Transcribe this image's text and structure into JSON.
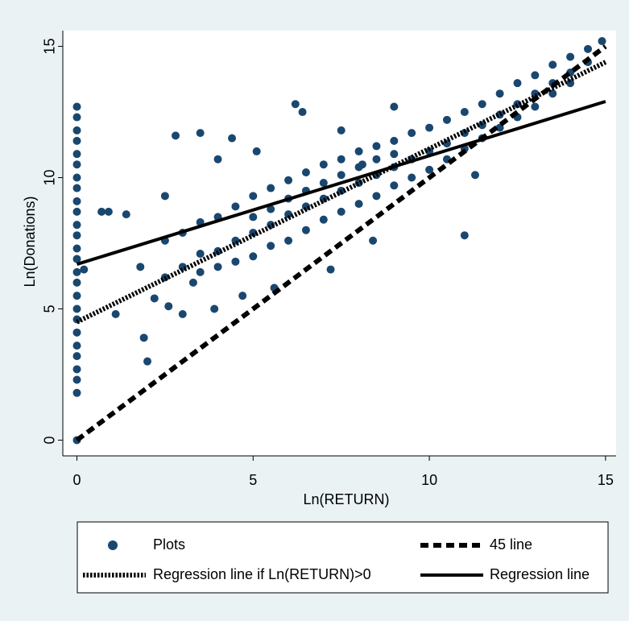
{
  "chart_data": {
    "type": "scatter",
    "x_label": "Ln(RETURN)",
    "y_label": "Ln(Donations)",
    "xlim": [
      -0.4,
      15.3
    ],
    "ylim": [
      -0.6,
      15.6
    ],
    "xticks": [
      0,
      5,
      10,
      15
    ],
    "yticks": [
      0,
      5,
      10,
      15
    ],
    "series": [
      {
        "name": "Plots",
        "type": "scatter",
        "color": "#1a476f",
        "x": [
          0,
          0,
          0,
          0,
          0,
          0,
          0,
          0,
          0,
          0,
          0,
          0,
          0,
          0,
          0,
          0,
          0,
          0,
          0,
          0,
          0,
          0,
          0,
          0,
          0,
          0,
          0.7,
          0.9,
          1.4,
          1.1,
          0.2,
          1.8,
          1.9,
          2.0,
          2.8,
          3.5,
          4.0,
          2.5,
          2.2,
          2.6,
          3.0,
          3.3,
          4.4,
          5.1,
          6.2,
          6.4,
          7.5,
          8.1,
          9.0,
          11.0,
          11.3,
          7.2,
          8.4,
          5.6,
          3.9,
          4.7,
          2.5,
          2.5,
          3,
          3,
          3.5,
          3.5,
          3.5,
          4,
          4,
          4,
          4.5,
          4.5,
          4.5,
          5,
          5,
          5,
          5,
          5.5,
          5.5,
          5.5,
          5.5,
          6,
          6,
          6,
          6,
          6.5,
          6.5,
          6.5,
          6.5,
          7,
          7,
          7,
          7,
          7.5,
          7.5,
          7.5,
          7.5,
          8,
          8,
          8,
          8,
          8.5,
          8.5,
          8.5,
          8.5,
          9,
          9,
          9,
          9,
          9.5,
          9.5,
          9.5,
          10,
          10,
          10,
          10.5,
          10.5,
          10.5,
          11,
          11,
          11,
          11.5,
          11.5,
          11.5,
          12,
          12,
          12,
          12.5,
          12.5,
          12.5,
          13,
          13,
          13,
          13.5,
          13.5,
          13.5,
          14,
          14,
          14,
          14.5,
          14.5,
          14.9
        ],
        "values": [
          1.8,
          2.3,
          2.7,
          3.2,
          3.6,
          4.1,
          4.6,
          5.0,
          5.5,
          6.0,
          6.4,
          6.9,
          7.3,
          7.8,
          8.2,
          8.7,
          9.1,
          9.6,
          10.0,
          10.5,
          10.9,
          11.4,
          11.8,
          12.3,
          12.7,
          0.0,
          8.7,
          8.7,
          8.6,
          4.8,
          6.5,
          6.6,
          3.9,
          3.0,
          11.6,
          11.7,
          10.7,
          9.3,
          5.4,
          5.1,
          4.8,
          6.0,
          11.5,
          11.0,
          12.8,
          12.5,
          11.8,
          10.5,
          12.7,
          7.8,
          10.1,
          6.5,
          7.6,
          5.8,
          5.0,
          5.5,
          6.2,
          7.6,
          6.6,
          7.9,
          7.1,
          8.3,
          6.4,
          7.2,
          8.5,
          6.6,
          7.6,
          8.9,
          6.8,
          7.9,
          9.3,
          7.0,
          8.5,
          8.2,
          9.6,
          7.4,
          8.8,
          8.6,
          9.9,
          7.6,
          9.2,
          8.9,
          10.2,
          8.0,
          9.5,
          9.2,
          10.5,
          8.4,
          9.8,
          9.5,
          10.7,
          8.7,
          10.1,
          9.8,
          11.0,
          9.0,
          10.4,
          10.1,
          11.2,
          9.3,
          10.7,
          10.4,
          11.4,
          9.7,
          10.9,
          10.7,
          11.7,
          10.0,
          11.0,
          11.9,
          10.3,
          11.3,
          12.2,
          10.7,
          11.7,
          12.5,
          11.1,
          12.0,
          12.8,
          11.5,
          12.4,
          13.2,
          11.9,
          12.8,
          13.6,
          12.3,
          13.2,
          13.9,
          12.7,
          13.6,
          14.3,
          13.2,
          14.0,
          14.6,
          13.6,
          14.4,
          14.9,
          15.2
        ]
      },
      {
        "name": "45 line",
        "type": "line",
        "line_style": "dashed",
        "color": "#000000",
        "x": [
          0,
          15
        ],
        "values": [
          0,
          15
        ]
      },
      {
        "name": "Regression line if Ln(RETURN)>0",
        "type": "line",
        "line_style": "dotted",
        "color": "#000000",
        "x": [
          0,
          15
        ],
        "values": [
          4.5,
          14.4
        ]
      },
      {
        "name": "Regression line",
        "type": "line",
        "line_style": "solid",
        "color": "#000000",
        "x": [
          0,
          15
        ],
        "values": [
          6.7,
          12.9
        ]
      }
    ]
  }
}
